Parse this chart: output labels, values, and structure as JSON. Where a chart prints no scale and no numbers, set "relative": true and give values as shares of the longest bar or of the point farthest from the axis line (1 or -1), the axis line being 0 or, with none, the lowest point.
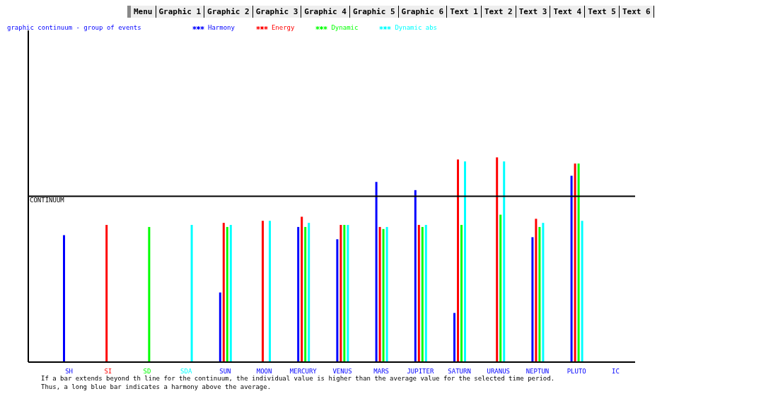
{
  "chart_data": {
    "type": "bar",
    "title": "graphic continuum - group of events",
    "relative": true,
    "legend": "top",
    "categories": [
      "SH",
      "SI",
      "SD",
      "SDA",
      "SUN",
      "MOON",
      "MERCURY",
      "VENUS",
      "MARS",
      "JUPITER",
      "SATURN",
      "URANUS",
      "NEPTUN",
      "PLUTO",
      "IC"
    ],
    "series": [
      {
        "name": "Harmony",
        "color": "#0000ff",
        "values": [
          0.62,
          null,
          null,
          null,
          0.34,
          null,
          0.66,
          0.6,
          0.88,
          0.84,
          0.24,
          null,
          0.61,
          0.91,
          null
        ]
      },
      {
        "name": "Energy",
        "color": "#ff0000",
        "values": [
          null,
          0.67,
          null,
          null,
          0.68,
          0.69,
          0.71,
          0.67,
          0.66,
          0.67,
          0.99,
          1,
          0.7,
          0.97,
          null
        ]
      },
      {
        "name": "Dynamic",
        "color": "#00ff00",
        "values": [
          null,
          null,
          0.66,
          null,
          0.66,
          null,
          0.66,
          0.67,
          0.65,
          0.66,
          0.67,
          0.72,
          0.66,
          0.97,
          null
        ]
      },
      {
        "name": "Dynamic abs",
        "color": "#00ffff",
        "values": [
          null,
          null,
          null,
          0.67,
          0.67,
          0.69,
          0.68,
          0.67,
          0.66,
          0.67,
          0.98,
          0.98,
          0.68,
          0.69,
          null
        ]
      }
    ],
    "ref_lines": [
      {
        "axis": "y",
        "value": 0.81,
        "label": "CONTINUUM",
        "color": "#000000"
      }
    ],
    "annotations": [
      "Menu",
      "Graphic 1",
      "Graphic 2",
      "Graphic 3",
      "Graphic 4",
      "Graphic 5",
      "Graphic 6",
      "Text 1",
      "Text 2",
      "Text 3",
      "Text 4",
      "Text 5",
      "Text 6",
      "If a bar extends beyond th line for the continuum, the individual value is higher than the average value for the selected time period.",
      "Thus, a long blue bar indicates a harmony above the average."
    ]
  }
}
